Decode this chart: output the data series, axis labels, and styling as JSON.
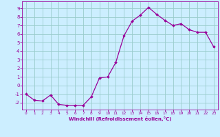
{
  "x": [
    0,
    1,
    2,
    3,
    4,
    5,
    6,
    7,
    8,
    9,
    10,
    11,
    12,
    13,
    14,
    15,
    16,
    17,
    18,
    19,
    20,
    21,
    22,
    23
  ],
  "y": [
    -1.0,
    -1.7,
    -1.8,
    -1.1,
    -2.2,
    -2.3,
    -2.3,
    -2.3,
    -1.3,
    0.9,
    1.0,
    2.7,
    5.8,
    7.5,
    8.2,
    9.1,
    8.3,
    7.6,
    7.0,
    7.2,
    6.5,
    6.2,
    6.2,
    4.5
  ],
  "line_color": "#990099",
  "marker_color": "#990099",
  "bg_color": "#cceeff",
  "grid_color": "#99cccc",
  "axis_label_color": "#990099",
  "tick_color": "#990099",
  "xlabel": "Windchill (Refroidissement éolien,°C)",
  "ylim": [
    -2.8,
    9.8
  ],
  "xlim": [
    -0.5,
    23.5
  ],
  "yticks": [
    -2,
    -1,
    0,
    1,
    2,
    3,
    4,
    5,
    6,
    7,
    8,
    9
  ],
  "xticks": [
    0,
    1,
    2,
    3,
    4,
    5,
    6,
    7,
    8,
    9,
    10,
    11,
    12,
    13,
    14,
    15,
    16,
    17,
    18,
    19,
    20,
    21,
    22,
    23
  ]
}
